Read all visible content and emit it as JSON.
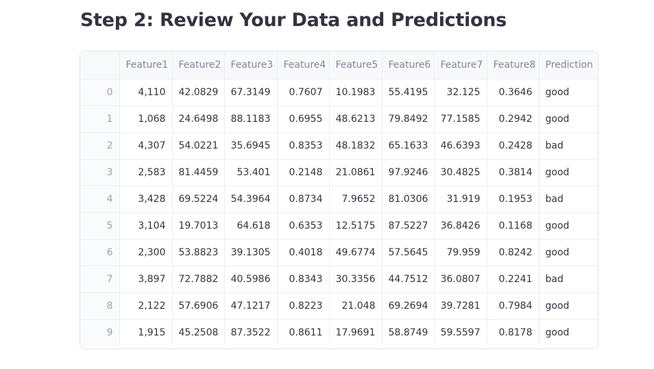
{
  "heading": "Step 2: Review Your Data and Predictions",
  "table": {
    "columns": [
      "",
      "Feature1",
      "Feature2",
      "Feature3",
      "Feature4",
      "Feature5",
      "Feature6",
      "Feature7",
      "Feature8",
      "Prediction"
    ],
    "rows": [
      [
        "0",
        "4,110",
        "42.0829",
        "67.3149",
        "0.7607",
        "10.1983",
        "55.4195",
        "32.125",
        "0.3646",
        "good"
      ],
      [
        "1",
        "1,068",
        "24.6498",
        "88.1183",
        "0.6955",
        "48.6213",
        "79.8492",
        "77.1585",
        "0.2942",
        "good"
      ],
      [
        "2",
        "4,307",
        "54.0221",
        "35.6945",
        "0.8353",
        "48.1832",
        "65.1633",
        "46.6393",
        "0.2428",
        "bad"
      ],
      [
        "3",
        "2,583",
        "81.4459",
        "53.401",
        "0.2148",
        "21.0861",
        "97.9246",
        "30.4825",
        "0.3814",
        "good"
      ],
      [
        "4",
        "3,428",
        "69.5224",
        "54.3964",
        "0.8734",
        "7.9652",
        "81.0306",
        "31.919",
        "0.1953",
        "bad"
      ],
      [
        "5",
        "3,104",
        "19.7013",
        "64.618",
        "0.6353",
        "12.5175",
        "87.5227",
        "36.8426",
        "0.1168",
        "good"
      ],
      [
        "6",
        "2,300",
        "53.8823",
        "39.1305",
        "0.4018",
        "49.6774",
        "57.5645",
        "79.959",
        "0.8242",
        "good"
      ],
      [
        "7",
        "3,897",
        "72.7882",
        "40.5986",
        "0.8343",
        "30.3356",
        "44.7512",
        "36.0807",
        "0.2241",
        "bad"
      ],
      [
        "8",
        "2,122",
        "57.6906",
        "47.1217",
        "0.8223",
        "21.048",
        "69.2694",
        "39.7281",
        "0.7984",
        "good"
      ],
      [
        "9",
        "1,915",
        "45.2508",
        "87.3522",
        "0.8611",
        "17.9691",
        "58.8749",
        "59.5597",
        "0.8178",
        "good"
      ]
    ]
  }
}
